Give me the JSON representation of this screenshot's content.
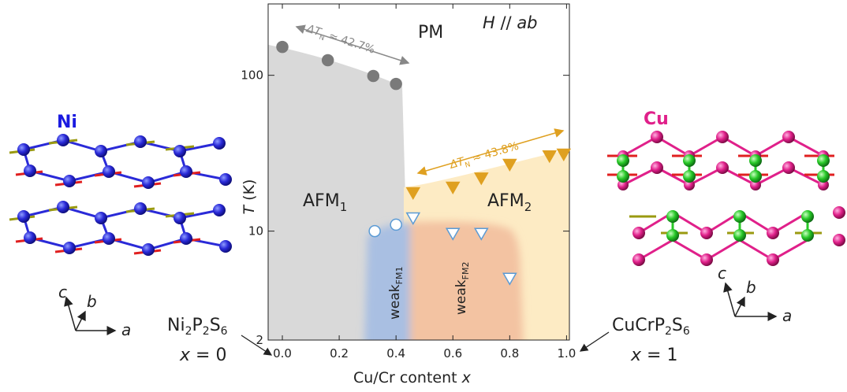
{
  "chart_data": {
    "type": "scatter",
    "xlabel": [
      "Cu/Cr content ",
      "x"
    ],
    "ylabel": [
      "T",
      " (K)"
    ],
    "xlim": [
      -0.05,
      1.01
    ],
    "ylim": [
      2,
      287
    ],
    "log_y": true,
    "xticks": [
      {
        "value": 0,
        "label": "0.0"
      },
      {
        "value": 0.2,
        "label": "0.2"
      },
      {
        "value": 0.4,
        "label": "0.4"
      },
      {
        "value": 0.6,
        "label": "0.6"
      },
      {
        "value": 0.8,
        "label": "0.8"
      },
      {
        "value": 1,
        "label": "1.0"
      }
    ],
    "yticks": [
      2,
      10,
      100
    ],
    "series": [
      {
        "x": [
          0,
          0.16,
          0.32,
          0.4
        ],
        "values": [
          152,
          125,
          99,
          88
        ],
        "color": "#7a7a7a",
        "marker": "circle",
        "filled": true
      },
      {
        "x": [
          0.46,
          0.6,
          0.7,
          0.8,
          0.94,
          0.99
        ],
        "values": [
          17.7,
          19.2,
          22,
          26.9,
          30.5,
          31.3
        ],
        "color": "#dfa020",
        "marker": "triangle-down",
        "filled": true
      },
      {
        "x": [
          0.325,
          0.4
        ],
        "values": [
          10,
          11
        ],
        "color": "#5b9bd5",
        "marker": "circle",
        "filled": false
      },
      {
        "x": [
          0.46,
          0.6,
          0.7,
          0.8
        ],
        "values": [
          12.2,
          9.7,
          9.7,
          5.0
        ],
        "color": "#5b9bd5",
        "marker": "triangle-down",
        "filled": false
      }
    ],
    "annotations": {
      "pm": "PM",
      "field": [
        "H",
        " // ",
        "ab"
      ],
      "afm1": [
        "AFM",
        "1"
      ],
      "afm2": [
        "AFM",
        "2"
      ],
      "weak1": [
        "weak",
        "FM1"
      ],
      "weak2": [
        "weak",
        "FM2"
      ],
      "delta1": [
        "ΔT",
        "N",
        " ≈ 42.7%"
      ],
      "delta2": [
        "ΔT",
        "N",
        " ≈ 43.8%"
      ],
      "left_compound": [
        "Ni",
        "2",
        "P",
        "2",
        "S",
        "6"
      ],
      "left_x": [
        "x",
        " = 0"
      ],
      "right_compound": [
        "CuCrP",
        "2",
        "S",
        "6"
      ],
      "right_x": [
        "x",
        " = 1"
      ],
      "ni": "Ni",
      "cu": "Cu",
      "left_axes": [
        "c",
        "b",
        "a"
      ],
      "right_axes": [
        "c",
        "b",
        "a"
      ]
    }
  }
}
